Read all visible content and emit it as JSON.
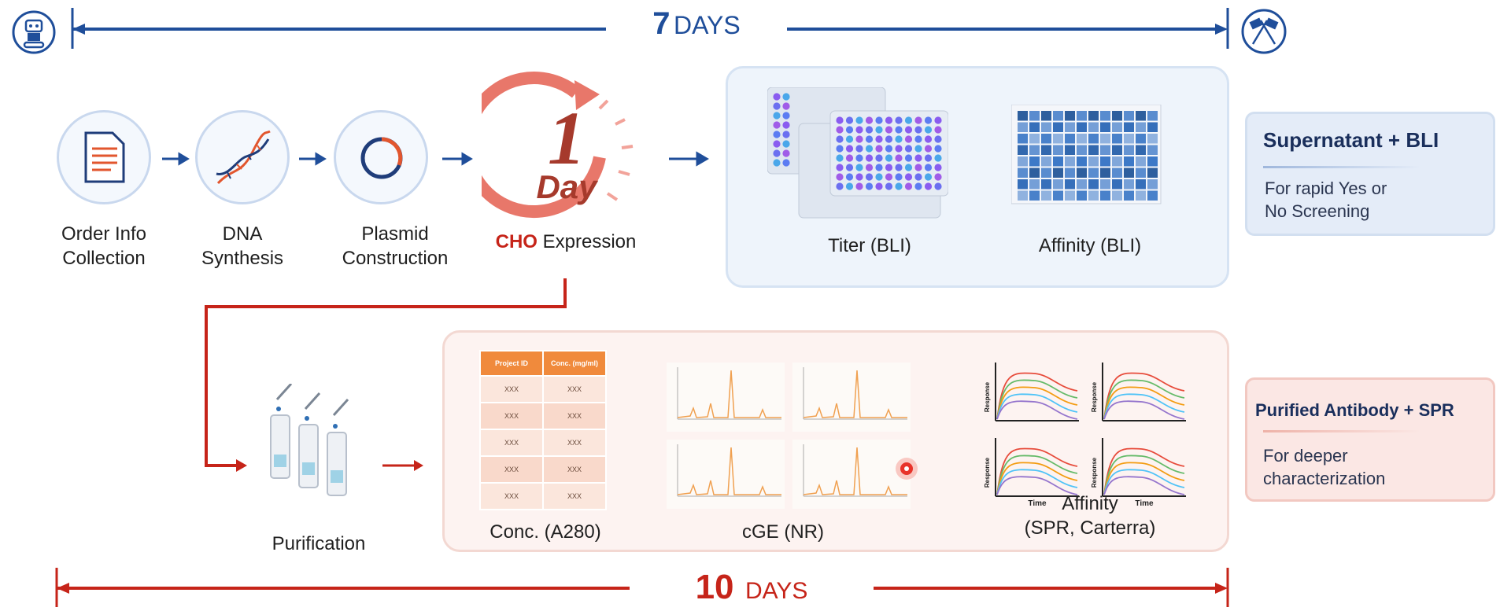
{
  "top_timeline": {
    "number": "7",
    "unit": "DAYS",
    "color": "#1f4e9a"
  },
  "bottom_timeline": {
    "number": "10",
    "unit": "DAYS",
    "color": "#c62419"
  },
  "steps": {
    "order_info": "Order Info\nCollection",
    "dna_synthesis": "DNA\nSynthesis",
    "plasmid": "Plasmid\nConstruction",
    "cho_prefix": "CHO",
    "cho_suffix": " Expression",
    "timer_number": "1",
    "timer_unit": "Day",
    "purification": "Purification"
  },
  "bli_panel": {
    "titer_label": "Titer (BLI)",
    "affinity_label": "Affinity (BLI)"
  },
  "sup_card": {
    "title": "Supernatant + BLI",
    "desc": "For rapid Yes or\nNo Screening"
  },
  "spr_panel": {
    "conc_label": "Conc. (A280)",
    "cge_label": "cGE (NR)",
    "affinity_label": "Affinity\n(SPR, Carterra)",
    "table_headers": [
      "Project ID",
      "Conc. (mg/ml)"
    ],
    "table_rows": [
      [
        "XXX",
        "XXX"
      ],
      [
        "XXX",
        "XXX"
      ],
      [
        "XXX",
        "XXX"
      ],
      [
        "XXX",
        "XXX"
      ],
      [
        "XXX",
        "XXX"
      ]
    ],
    "sensor_ylabel": "Response",
    "sensor_xlabel": "Time"
  },
  "pur_card": {
    "title": "Purified Antibody + SPR",
    "desc": "For deeper\ncharacterization"
  },
  "icons": [
    "robot-icon",
    "racing-flags-icon",
    "document-icon",
    "dna-icon",
    "plasmid-icon",
    "stopwatch-icon",
    "purification-columns-icon"
  ]
}
